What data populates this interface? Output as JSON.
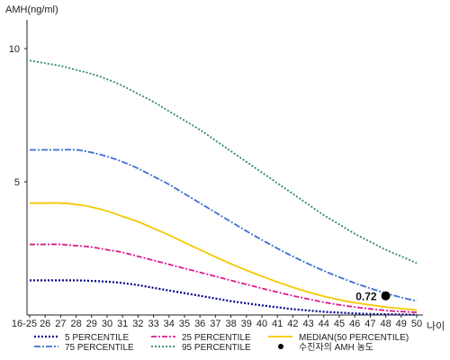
{
  "chart_data": {
    "type": "line",
    "ylabel": "AMH(ng/ml)",
    "xlabel": "나이",
    "ylim": [
      0,
      11
    ],
    "yticks": [
      10,
      5
    ],
    "categories": [
      "16-25",
      "26",
      "27",
      "28",
      "29",
      "30",
      "31",
      "32",
      "33",
      "34",
      "35",
      "36",
      "37",
      "38",
      "39",
      "40",
      "41",
      "42",
      "43",
      "44",
      "45",
      "46",
      "47",
      "48",
      "49",
      "50"
    ],
    "series": [
      {
        "name": "5 PERCENTILE",
        "color": "#00008b",
        "dash": "2,2",
        "width": 2.2,
        "values": [
          1.3,
          1.3,
          1.3,
          1.3,
          1.28,
          1.25,
          1.2,
          1.12,
          1.02,
          0.92,
          0.82,
          0.72,
          0.62,
          0.52,
          0.44,
          0.36,
          0.29,
          0.22,
          0.17,
          0.12,
          0.09,
          0.06,
          0.04,
          0.03,
          0.02,
          0.01
        ]
      },
      {
        "name": "25 PERCENTILE",
        "color": "#dd1c8c",
        "dash": "6,2,2,2",
        "width": 1.8,
        "values": [
          2.65,
          2.65,
          2.65,
          2.6,
          2.55,
          2.45,
          2.35,
          2.2,
          2.05,
          1.9,
          1.75,
          1.6,
          1.45,
          1.3,
          1.15,
          1.0,
          0.86,
          0.72,
          0.6,
          0.48,
          0.38,
          0.3,
          0.23,
          0.17,
          0.13,
          0.1
        ]
      },
      {
        "name": "MEDIAN(50 PERCENTILE)",
        "color": "#f5c800",
        "dash": "",
        "width": 1.8,
        "values": [
          4.2,
          4.2,
          4.2,
          4.15,
          4.05,
          3.9,
          3.7,
          3.5,
          3.25,
          3.0,
          2.72,
          2.45,
          2.18,
          1.92,
          1.68,
          1.45,
          1.24,
          1.04,
          0.86,
          0.7,
          0.57,
          0.46,
          0.38,
          0.3,
          0.24,
          0.19
        ]
      },
      {
        "name": "75 PERCENTILE",
        "color": "#3f6fd0",
        "dash": "7,2,2,2",
        "width": 1.8,
        "values": [
          6.2,
          6.2,
          6.2,
          6.2,
          6.1,
          5.95,
          5.75,
          5.5,
          5.2,
          4.9,
          4.55,
          4.2,
          3.85,
          3.5,
          3.15,
          2.82,
          2.5,
          2.2,
          1.92,
          1.66,
          1.42,
          1.2,
          1.0,
          0.82,
          0.66,
          0.52
        ]
      },
      {
        "name": "95 PERCENTILE",
        "color": "#2e8b57",
        "dash": "2,2",
        "width": 1.8,
        "values": [
          9.55,
          9.45,
          9.35,
          9.2,
          9.05,
          8.85,
          8.6,
          8.3,
          8.0,
          7.65,
          7.3,
          6.95,
          6.55,
          6.15,
          5.75,
          5.35,
          4.95,
          4.55,
          4.15,
          3.75,
          3.4,
          3.05,
          2.75,
          2.45,
          2.2,
          1.95
        ]
      }
    ],
    "markers": [
      {
        "name": "수진자의 AMH 농도",
        "x": "48",
        "y": 0.72,
        "label": "0.72",
        "color": "#000000"
      }
    ],
    "legend_layout": "bottom, three columns",
    "grid": false
  }
}
